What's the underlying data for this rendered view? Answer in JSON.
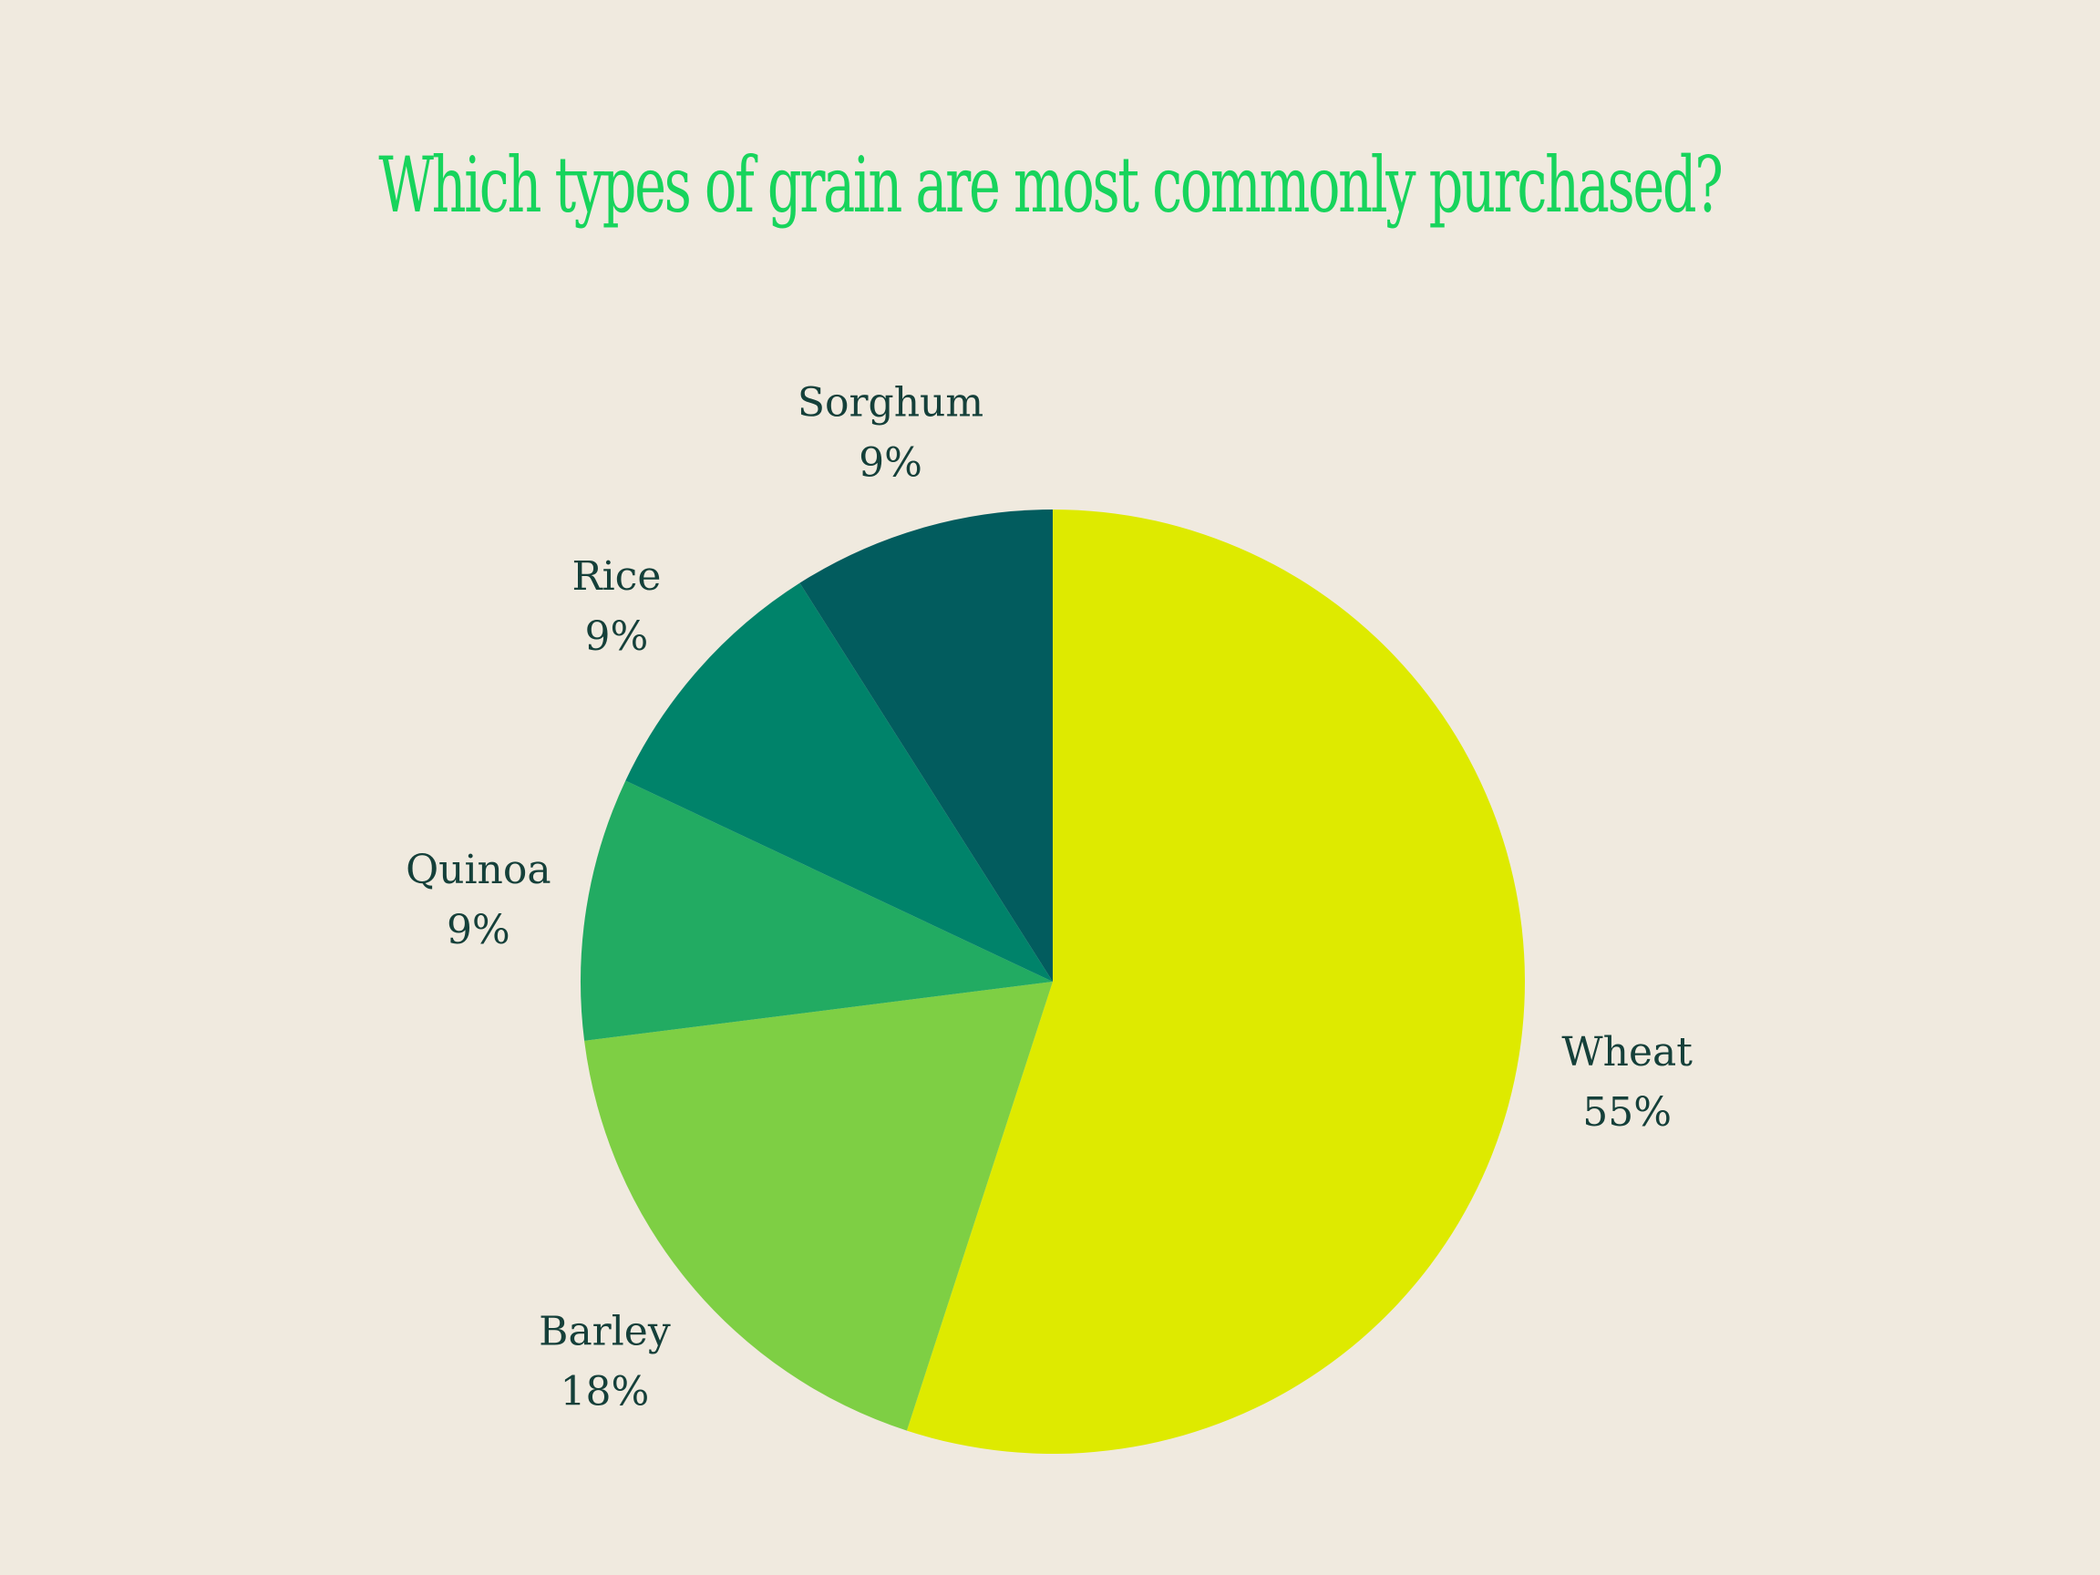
{
  "background_color": "#F0EADF",
  "title_color": "#17D45C",
  "label_color": "#15403A",
  "chart_data": {
    "type": "pie",
    "title": "Which types of grain are most commonly purchased?",
    "start_angle_deg": 0,
    "direction": "clockwise",
    "slices": [
      {
        "label": "Wheat",
        "value": 55,
        "value_label": "55%",
        "color": "#DEEA00"
      },
      {
        "label": "Barley",
        "value": 18,
        "value_label": "18%",
        "color": "#7ECF44"
      },
      {
        "label": "Quinoa",
        "value": 9,
        "value_label": "9%",
        "color": "#22AB62"
      },
      {
        "label": "Rice",
        "value": 9,
        "value_label": "9%",
        "color": "#00836A"
      },
      {
        "label": "Sorghum",
        "value": 9,
        "value_label": "9%",
        "color": "#025C5E"
      }
    ]
  }
}
